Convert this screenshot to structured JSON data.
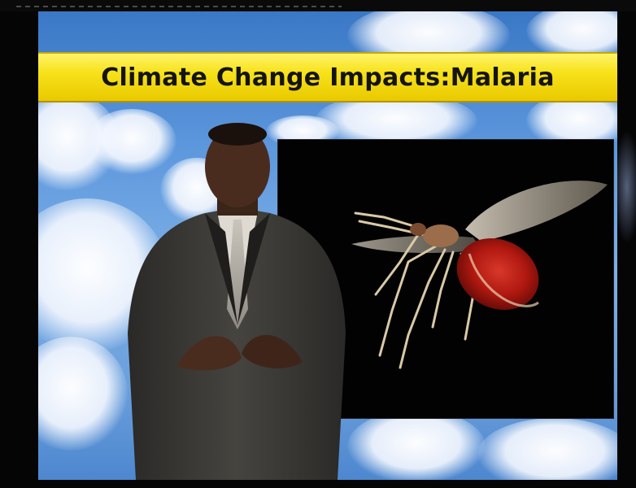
{
  "banner": {
    "title": "Climate Change Impacts:Malaria"
  },
  "scene": {
    "background": "sky-with-clouds",
    "inset_image": "mosquito-photo",
    "presenter": "man-in-dark-suit"
  },
  "colors": {
    "banner_yellow": "#f7e21a",
    "sky_blue": "#5e98dd",
    "mosquito_red": "#b01810",
    "suit": "#3b3a38"
  }
}
